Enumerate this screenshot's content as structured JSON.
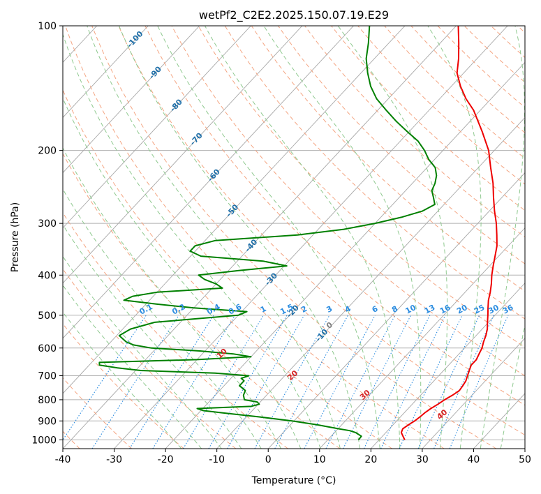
{
  "chart_data": {
    "type": "skew-t",
    "title": "wetPf2_C2E2.2025.150.07.19.E29",
    "xlabel": "Temperature (°C)",
    "ylabel": "Pressure (hPa)",
    "xlim": [
      -40,
      50
    ],
    "ylim": [
      1050,
      100
    ],
    "y_scale": "log",
    "grid": true,
    "x_ticks": [
      -40,
      -30,
      -20,
      -10,
      0,
      10,
      20,
      30,
      40,
      50
    ],
    "y_ticks": [
      100,
      200,
      300,
      400,
      500,
      600,
      700,
      800,
      900,
      1000
    ],
    "colors": {
      "temperature": "#ee0000",
      "dewpoint": "#008000",
      "isotherm": "#9a9a9a",
      "dry_adiabat": "#f4a582",
      "moist_adiabat": "#8fc98f",
      "mixing_ratio": "#2b8ce0",
      "isotherm_label": "#1f6fa8",
      "dry_label": "#d62728",
      "wet_label": "#808080"
    },
    "series": [
      {
        "key": "temperature",
        "pressure": [
          1000,
          980,
          960,
          940,
          920,
          900,
          880,
          860,
          840,
          820,
          800,
          780,
          760,
          740,
          720,
          700,
          680,
          660,
          640,
          620,
          600,
          580,
          560,
          540,
          520,
          500,
          480,
          460,
          440,
          420,
          400,
          380,
          360,
          340,
          320,
          300,
          280,
          260,
          240,
          220,
          200,
          180,
          160,
          150,
          140,
          130,
          120,
          110,
          100
        ],
        "values": [
          25.0,
          24.0,
          23.0,
          22.6,
          23.0,
          23.5,
          23.8,
          24.0,
          24.4,
          25.0,
          25.5,
          26.2,
          26.7,
          26.5,
          26.2,
          25.6,
          25.0,
          24.4,
          24.4,
          23.9,
          23.4,
          22.6,
          21.9,
          21.0,
          19.8,
          18.6,
          17.3,
          16.0,
          14.9,
          13.6,
          12.1,
          10.7,
          9.3,
          7.8,
          5.8,
          3.6,
          1.0,
          -1.6,
          -4.3,
          -7.6,
          -11.1,
          -15.8,
          -21.3,
          -24.9,
          -28.2,
          -31.3,
          -33.6,
          -36.4,
          -39.6
        ]
      },
      {
        "key": "dewpoint",
        "pressure": [
          1000,
          980,
          960,
          950,
          940,
          920,
          900,
          880,
          860,
          850,
          840,
          830,
          820,
          810,
          800,
          780,
          760,
          740,
          720,
          710,
          700,
          690,
          680,
          670,
          660,
          650,
          640,
          630,
          620,
          610,
          600,
          590,
          580,
          560,
          540,
          520,
          500,
          490,
          480,
          470,
          460,
          450,
          440,
          430,
          420,
          410,
          400,
          390,
          380,
          370,
          360,
          350,
          340,
          330,
          320,
          310,
          300,
          290,
          280,
          270,
          260,
          250,
          240,
          230,
          220,
          210,
          200,
          190,
          180,
          170,
          160,
          150,
          140,
          130,
          120,
          110,
          100
        ],
        "values": [
          16.0,
          15.9,
          14.1,
          12.6,
          10.1,
          5.3,
          -0.4,
          -7.5,
          -15.5,
          -19.5,
          -21.1,
          -11.0,
          -9.8,
          -10.6,
          -13.5,
          -14.5,
          -15.0,
          -17.0,
          -17.0,
          -18.0,
          -17.0,
          -24.0,
          -39.0,
          -44.0,
          -48.0,
          -48.5,
          -30.0,
          -20.0,
          -24.0,
          -31.0,
          -41.0,
          -45.0,
          -47.0,
          -49.5,
          -48.5,
          -45.0,
          -30.0,
          -29.0,
          -40.0,
          -48.0,
          -55.0,
          -54.0,
          -50.0,
          -38.0,
          -40.0,
          -43.0,
          -45.0,
          -38.0,
          -29.5,
          -35.0,
          -48.0,
          -51.0,
          -51.0,
          -48.0,
          -33.0,
          -25.0,
          -20.0,
          -16.0,
          -13.0,
          -11.8,
          -13.3,
          -14.9,
          -15.6,
          -16.7,
          -18.4,
          -21.2,
          -23.6,
          -26.5,
          -30.4,
          -34.4,
          -38.3,
          -42.3,
          -45.7,
          -48.7,
          -51.6,
          -54.0,
          -56.9
        ]
      }
    ],
    "isotherm_labels": [
      "-100",
      "-90",
      "-80",
      "-70",
      "-60",
      "-50",
      "-40",
      "-30",
      "-20",
      "-10"
    ],
    "isotherm_label_values": [
      -100,
      -90,
      -80,
      -70,
      -60,
      -50,
      -40,
      -30,
      -20,
      -10
    ],
    "mixing_ratio_labels": [
      "0.1",
      "0.2",
      "0.4",
      "0.6",
      "1",
      "1.5",
      "2",
      "3",
      "4",
      "6",
      "8",
      "10",
      "13",
      "16",
      "20",
      "25",
      "30",
      "36"
    ],
    "mixing_ratio_values": [
      0.1,
      0.2,
      0.4,
      0.6,
      1,
      1.5,
      2,
      3,
      4,
      6,
      8,
      10,
      13,
      16,
      20,
      25,
      30,
      36
    ],
    "dry_adiabat_labels": [
      "10",
      "20",
      "30",
      "40"
    ],
    "dry_adiabat_label_values": [
      10,
      20,
      30,
      40
    ],
    "wet_bulb_labels": [
      "0"
    ],
    "wet_bulb_label_values": [
      0
    ]
  }
}
